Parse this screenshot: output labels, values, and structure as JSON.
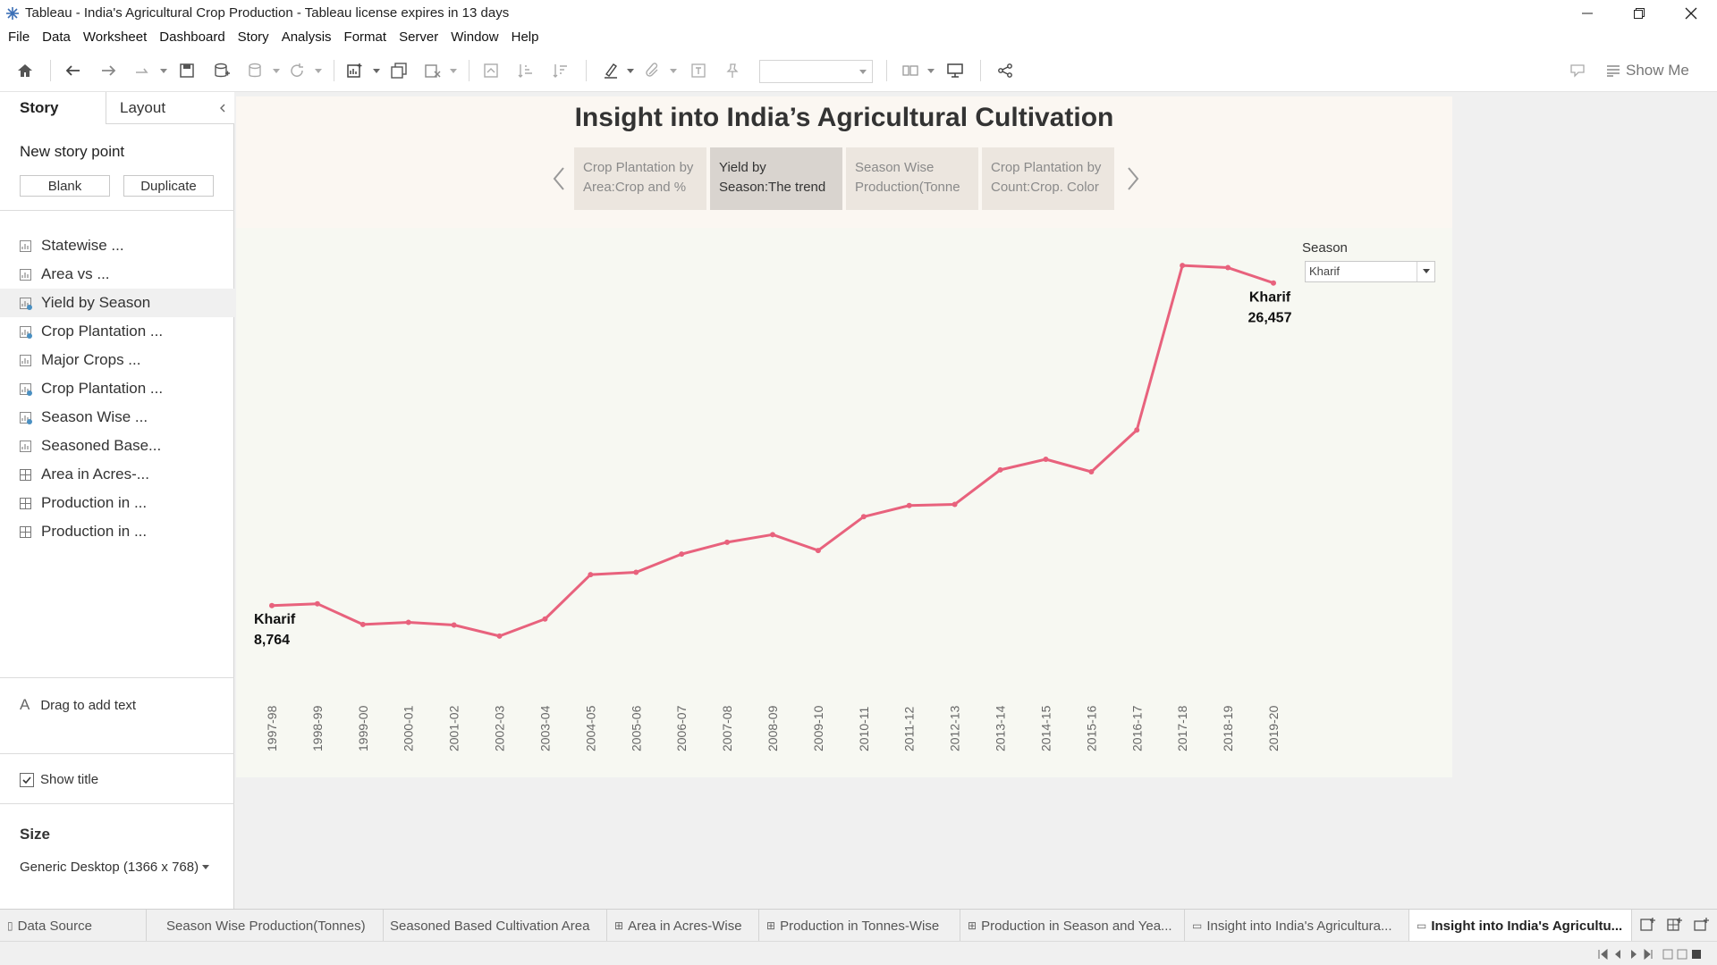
{
  "window": {
    "title": "Tableau - India's Agricultural Crop Production - Tableau license expires in 13 days"
  },
  "menu": [
    "File",
    "Data",
    "Worksheet",
    "Dashboard",
    "Story",
    "Analysis",
    "Format",
    "Server",
    "Window",
    "Help"
  ],
  "toolbar": {
    "show_me_label": "Show Me"
  },
  "left_pane": {
    "tab_story": "Story",
    "tab_layout": "Layout",
    "new_story_point": "New story point",
    "blank_label": "Blank",
    "duplicate_label": "Duplicate",
    "sheets": [
      {
        "label": "Statewise ...",
        "kind": "sheet"
      },
      {
        "label": "Area vs ...",
        "kind": "sheet"
      },
      {
        "label": "Yield by Season",
        "kind": "dash"
      },
      {
        "label": "Crop Plantation ...",
        "kind": "dash"
      },
      {
        "label": "Major Crops ...",
        "kind": "sheet"
      },
      {
        "label": "Crop Plantation ...",
        "kind": "dash"
      },
      {
        "label": "Season Wise ...",
        "kind": "dash"
      },
      {
        "label": "Seasoned Base...",
        "kind": "sheet"
      },
      {
        "label": "Area in Acres-...",
        "kind": "grid"
      },
      {
        "label": "Production in ...",
        "kind": "grid"
      },
      {
        "label": "Production in ...",
        "kind": "grid"
      }
    ],
    "drag_text": "Drag to add text",
    "show_title": "Show title",
    "size_label": "Size",
    "size_value": "Generic Desktop (1366 x 768)"
  },
  "story": {
    "title": "Insight into India’s Agricultural Cultivation",
    "points": [
      {
        "text": "Crop Plantation by Area:Crop and %"
      },
      {
        "text": "Yield by Season:The trend"
      },
      {
        "text": "Season Wise Production(Tonne"
      },
      {
        "text": "Crop Plantation by Count:Crop. Color"
      }
    ]
  },
  "filter": {
    "label": "Season",
    "value": "Kharif"
  },
  "chart_data": {
    "type": "line",
    "x": [
      "1997-98",
      "1998-99",
      "1999-00",
      "2000-01",
      "2001-02",
      "2002-03",
      "2003-04",
      "2004-05",
      "2005-06",
      "2006-07",
      "2007-08",
      "2008-09",
      "2009-10",
      "2010-11",
      "2011-12",
      "2012-13",
      "2013-14",
      "2014-15",
      "2015-16",
      "2016-17",
      "2017-18",
      "2018-19",
      "2019-20"
    ],
    "series": [
      {
        "name": "Kharif",
        "color": "#e8627d",
        "values": [
          8764,
          8866,
          7730,
          7846,
          7699,
          7094,
          8030,
          10463,
          10591,
          11588,
          12240,
          12657,
          11786,
          13638,
          14253,
          14316,
          16207,
          16789,
          16103,
          18392,
          27416,
          27297,
          26457
        ]
      }
    ],
    "ylim": [
      4000,
      28500
    ],
    "labels": {
      "first": {
        "name": "Kharif",
        "value": "8,764"
      },
      "last": {
        "name": "Kharif",
        "value": "26,457"
      }
    }
  },
  "bottom_tabs": [
    {
      "label": "Data Source",
      "icon": "db"
    },
    {
      "label": "Season Wise Production(Tonnes)",
      "icon": ""
    },
    {
      "label": "Seasoned Based Cultivation Area",
      "icon": ""
    },
    {
      "label": "Area in Acres-Wise",
      "icon": "grid"
    },
    {
      "label": "Production in Tonnes-Wise",
      "icon": "grid"
    },
    {
      "label": "Production in Season and Yea...",
      "icon": "grid"
    },
    {
      "label": "Insight into India's Agricultura...",
      "icon": "story"
    },
    {
      "label": "Insight into India's Agricultu...",
      "icon": "story"
    }
  ]
}
